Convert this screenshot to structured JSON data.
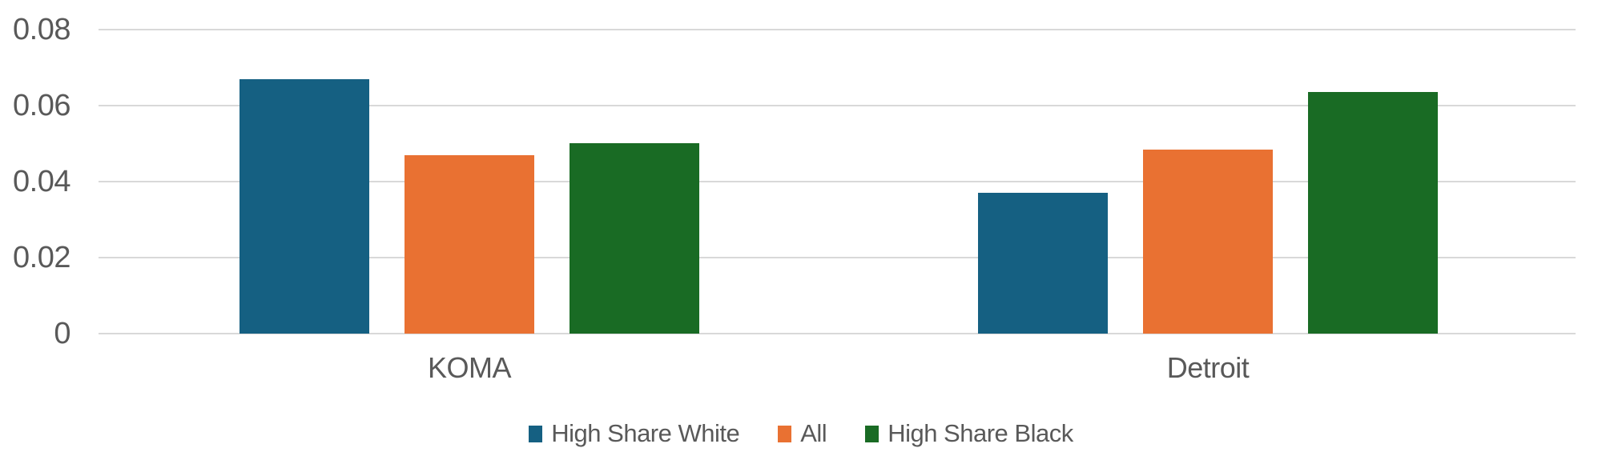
{
  "chart_data": {
    "type": "bar",
    "title": "",
    "categories": [
      "KOMA",
      "Detroit"
    ],
    "series": [
      {
        "name": "High Share White",
        "color": "#156082",
        "values": [
          0.067,
          0.037
        ]
      },
      {
        "name": "All",
        "color": "#E97132",
        "values": [
          0.047,
          0.0485
        ]
      },
      {
        "name": "High Share Black",
        "color": "#196B24",
        "values": [
          0.05,
          0.0635
        ]
      }
    ],
    "xlabel": "",
    "ylabel": "",
    "ylim": [
      0,
      0.08
    ],
    "ytick_values": [
      0,
      0.02,
      0.04,
      0.06,
      0.08
    ],
    "ytick_labels": [
      "0",
      "0.02",
      "0.04",
      "0.06",
      "0.08"
    ],
    "grid": true,
    "legend_position": "bottom",
    "styles": {
      "background": "#FFFFFF",
      "text_color": "#595959",
      "gridline_color": "#D9D9D9"
    }
  }
}
